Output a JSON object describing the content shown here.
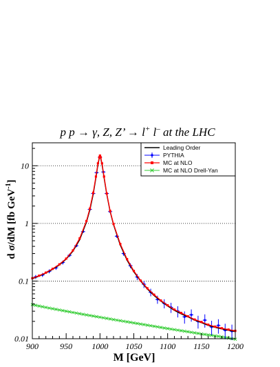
{
  "chart_data": {
    "type": "line",
    "title": {
      "pre": "p p  → γ, Z, Z’ → l",
      "sup1": "+",
      "mid": " l",
      "sup2": "–",
      "post": " at the LHC"
    },
    "xlabel": "M [GeV]",
    "ylabel": {
      "main": "d σ/dM  [fb GeV",
      "sup": "-1",
      "close": "]"
    },
    "xlim": [
      900,
      1200
    ],
    "ylim": [
      0.01,
      25
    ],
    "y_scale": "log",
    "grid": {
      "horizontal_dotted_at": [
        0.1,
        1,
        10
      ]
    },
    "x_ticks": [
      "900",
      "950",
      "1000",
      "1050",
      "1100",
      "1150",
      "1200"
    ],
    "x_tick_values": [
      900,
      950,
      1000,
      1050,
      1100,
      1150,
      1200
    ],
    "y_ticks": [
      "0.01",
      "0.1",
      "1",
      "10"
    ],
    "y_tick_values": [
      0.01,
      0.1,
      1,
      10
    ],
    "legend": {
      "placement": "top-right",
      "entries": [
        {
          "name": "Leading Order",
          "style": "line",
          "color": "#000000"
        },
        {
          "name": "PYTHIA",
          "style": "marker-errorbar",
          "color": "#0000ff"
        },
        {
          "name": "MC at NLO",
          "style": "marker-line",
          "color": "#ff0000"
        },
        {
          "name": "MC at NLO Drell-Yan",
          "style": "cross-line",
          "color": "#33cc33"
        }
      ]
    },
    "series": [
      {
        "name": "Leading Order",
        "color": "#000000",
        "x": [
          900,
          910,
          920,
          930,
          940,
          950,
          960,
          970,
          980,
          985,
          990,
          994,
          997,
          999,
          1000,
          1001,
          1003,
          1006,
          1010,
          1015,
          1020,
          1030,
          1040,
          1050,
          1060,
          1070,
          1080,
          1090,
          1100,
          1110,
          1120,
          1130,
          1140,
          1150,
          1160,
          1170,
          1180,
          1190,
          1200
        ],
        "y": [
          0.11,
          0.122,
          0.138,
          0.16,
          0.19,
          0.24,
          0.33,
          0.52,
          1.05,
          1.7,
          3.2,
          6.2,
          10.5,
          13.5,
          14.5,
          13.5,
          10.5,
          6.2,
          3.2,
          1.6,
          0.95,
          0.42,
          0.23,
          0.145,
          0.1,
          0.073,
          0.056,
          0.045,
          0.037,
          0.031,
          0.027,
          0.024,
          0.021,
          0.019,
          0.017,
          0.0158,
          0.0148,
          0.014,
          0.0133
        ]
      },
      {
        "name": "MC at NLO",
        "color": "#ff0000",
        "x": [
          900,
          910,
          920,
          930,
          940,
          950,
          960,
          970,
          980,
          985,
          990,
          994,
          997,
          999,
          1000,
          1001,
          1003,
          1006,
          1010,
          1015,
          1020,
          1030,
          1040,
          1050,
          1060,
          1070,
          1080,
          1090,
          1100,
          1110,
          1120,
          1130,
          1140,
          1150,
          1160,
          1170,
          1180,
          1190,
          1200
        ],
        "y": [
          0.112,
          0.124,
          0.14,
          0.163,
          0.195,
          0.245,
          0.34,
          0.55,
          1.1,
          1.8,
          3.4,
          6.5,
          11.0,
          14.0,
          15.0,
          14.0,
          11.0,
          6.5,
          3.3,
          1.65,
          0.98,
          0.44,
          0.24,
          0.15,
          0.102,
          0.075,
          0.058,
          0.046,
          0.038,
          0.032,
          0.028,
          0.0245,
          0.0215,
          0.0195,
          0.0175,
          0.0162,
          0.0152,
          0.0144,
          0.0137
        ]
      },
      {
        "name": "PYTHIA",
        "color": "#0000ff",
        "x": [
          905,
          915,
          925,
          935,
          945,
          955,
          965,
          975,
          985,
          990,
          995,
          1000,
          1005,
          1010,
          1015,
          1025,
          1035,
          1045,
          1055,
          1065,
          1075,
          1085,
          1095,
          1105,
          1115,
          1125,
          1135,
          1145,
          1155,
          1165,
          1175,
          1185,
          1195
        ],
        "y": [
          0.118,
          0.128,
          0.148,
          0.17,
          0.21,
          0.28,
          0.41,
          0.72,
          1.75,
          3.3,
          7.6,
          14.0,
          7.8,
          3.3,
          1.6,
          0.6,
          0.3,
          0.185,
          0.118,
          0.088,
          0.064,
          0.048,
          0.041,
          0.035,
          0.03,
          0.024,
          0.026,
          0.02,
          0.021,
          0.016,
          0.017,
          0.014,
          0.0135
        ],
        "err_frac": [
          0.08,
          0.08,
          0.08,
          0.08,
          0.08,
          0.07,
          0.06,
          0.05,
          0.04,
          0.04,
          0.03,
          0.03,
          0.03,
          0.04,
          0.05,
          0.07,
          0.09,
          0.1,
          0.12,
          0.14,
          0.15,
          0.16,
          0.18,
          0.2,
          0.22,
          0.24,
          0.24,
          0.25,
          0.26,
          0.28,
          0.28,
          0.3,
          0.3
        ]
      },
      {
        "name": "MC at NLO Drell-Yan",
        "color": "#33cc33",
        "x": [
          900,
          925,
          950,
          975,
          1000,
          1025,
          1050,
          1075,
          1100,
          1125,
          1150,
          1175,
          1200
        ],
        "y": [
          0.039,
          0.034,
          0.03,
          0.0265,
          0.0236,
          0.021,
          0.0188,
          0.0168,
          0.015,
          0.0135,
          0.0121,
          0.011,
          0.0098
        ]
      }
    ]
  }
}
